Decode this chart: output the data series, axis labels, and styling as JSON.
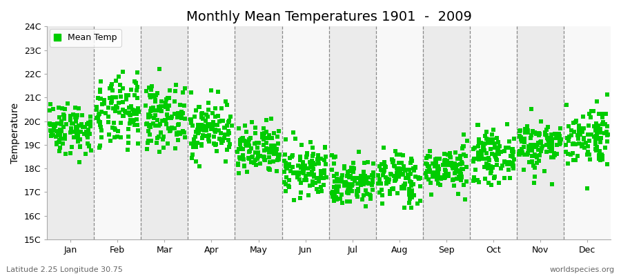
{
  "title": "Monthly Mean Temperatures 1901  -  2009",
  "ylabel": "Temperature",
  "ylim": [
    15,
    24
  ],
  "ytick_labels": [
    "15C",
    "16C",
    "17C",
    "18C",
    "19C",
    "20C",
    "21C",
    "22C",
    "23C",
    "24C"
  ],
  "months": [
    "Jan",
    "Feb",
    "Mar",
    "Apr",
    "May",
    "Jun",
    "Jul",
    "Aug",
    "Sep",
    "Oct",
    "Nov",
    "Dec"
  ],
  "dot_color": "#00cc00",
  "background_color": "#ffffff",
  "band_color_light": "#ebebeb",
  "band_color_white": "#f8f8f8",
  "legend_label": "Mean Temp",
  "bottom_left": "Latitude 2.25 Longitude 30.75",
  "bottom_right": "worldspecies.org",
  "dot_size": 18,
  "n_years": 109,
  "monthly_means": [
    19.7,
    20.3,
    20.2,
    19.7,
    18.7,
    17.9,
    17.4,
    17.6,
    18.0,
    18.5,
    19.0,
    19.4
  ],
  "monthly_stds": [
    0.55,
    0.75,
    0.65,
    0.6,
    0.55,
    0.55,
    0.5,
    0.55,
    0.45,
    0.5,
    0.55,
    0.65
  ],
  "seed": 42,
  "dashed_line_color": "#888888",
  "title_fontsize": 14,
  "ylabel_fontsize": 10,
  "tick_fontsize": 9
}
